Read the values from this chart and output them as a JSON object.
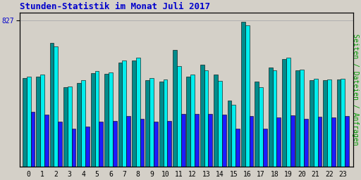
{
  "title": "Stunden-Statistik im Monat Juli 2017",
  "title_color": "#0000cc",
  "title_fontsize": 9,
  "ylabel_right": "Seiten / Dateien / Anfragen",
  "ylabel_right_color": "#009900",
  "ytick_label": "827",
  "ytick_label_color": "#0000cc",
  "background_color": "#d4d0c8",
  "plot_bg_color": "#d4d0c8",
  "bar_border_color": "#000000",
  "hours": [
    0,
    1,
    2,
    3,
    4,
    5,
    6,
    7,
    8,
    9,
    10,
    11,
    12,
    13,
    14,
    15,
    16,
    17,
    18,
    19,
    20,
    21,
    22,
    23
  ],
  "series1_color": "#008b8b",
  "series2_color": "#00eeee",
  "series3_color": "#1c1cff",
  "series1": [
    500,
    510,
    700,
    450,
    475,
    530,
    525,
    590,
    600,
    490,
    480,
    660,
    510,
    575,
    520,
    375,
    820,
    480,
    560,
    610,
    545,
    490,
    490,
    492
  ],
  "series2": [
    510,
    520,
    680,
    455,
    490,
    540,
    535,
    600,
    615,
    500,
    495,
    570,
    520,
    545,
    485,
    350,
    800,
    450,
    545,
    615,
    548,
    498,
    495,
    498
  ],
  "series3": [
    310,
    295,
    255,
    215,
    225,
    255,
    260,
    285,
    270,
    255,
    258,
    300,
    300,
    300,
    295,
    215,
    285,
    215,
    280,
    292,
    272,
    282,
    280,
    285
  ],
  "ylim": [
    0,
    870
  ],
  "ytick_val": 827,
  "figsize": [
    5.12,
    2.56
  ],
  "dpi": 100,
  "grid_color": "#b0b0b0",
  "n_gridlines": 5
}
